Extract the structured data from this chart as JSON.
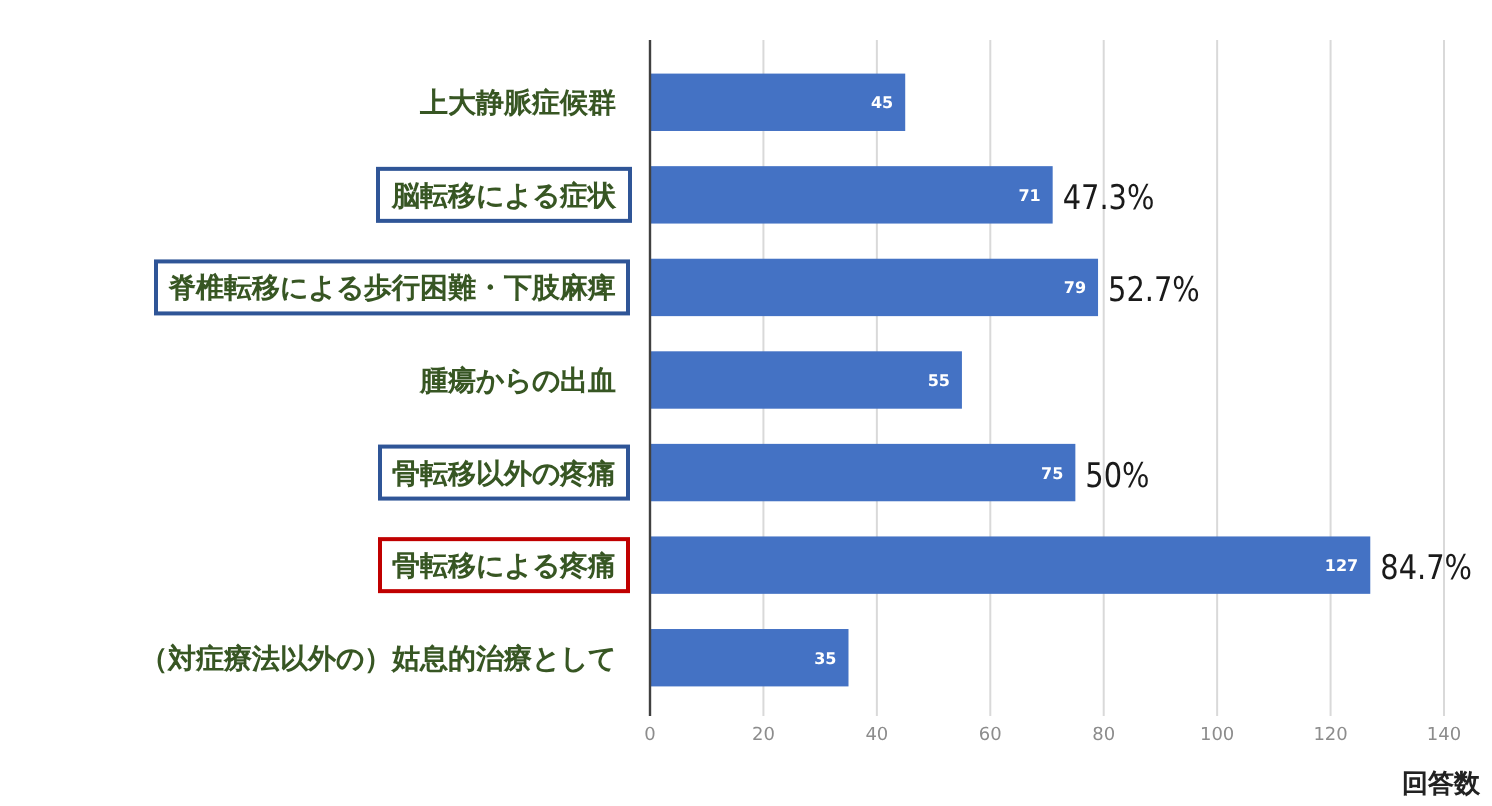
{
  "chart_data": {
    "type": "bar",
    "orientation": "horizontal",
    "xlabel": "回答数",
    "categories": [
      "上大静脈症候群",
      "脳転移による症状",
      "脊椎転移による歩行困難・下肢麻痺",
      "腫瘍からの出血",
      "骨転移以外の疼痛",
      "骨転移による疼痛",
      "（対症療法以外の）姑息的治療として"
    ],
    "values": [
      45,
      71,
      79,
      55,
      75,
      127,
      35
    ],
    "color": "#4472c4",
    "data_labels": true,
    "xlim": [
      0,
      140
    ],
    "xticks": [
      0,
      20,
      40,
      60,
      80,
      100,
      120,
      140
    ],
    "grid": "x",
    "annotations": [
      {
        "text": "47.3%",
        "x": 71,
        "y": "脳転移による症状"
      },
      {
        "text": "52.7%",
        "x": 79,
        "y": "脊椎転移による歩行困難・下肢麻痺"
      },
      {
        "text": "50%",
        "x": 75,
        "y": "骨転移以外の疼痛"
      },
      {
        "text": "84.7%",
        "x": 127,
        "y": "骨転移による疼痛"
      }
    ]
  }
}
